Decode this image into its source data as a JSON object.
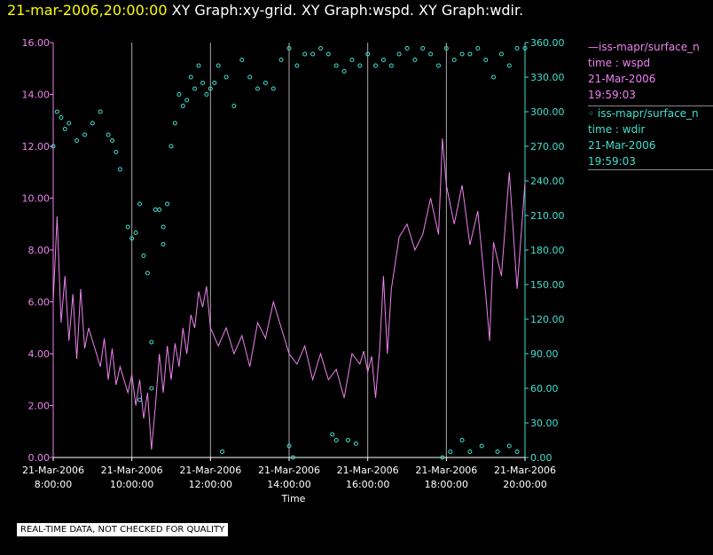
{
  "header": {
    "timestamp": "21-mar-2006,20:00:00",
    "graphs": " XY Graph:xy-grid.  XY Graph:wspd.  XY Graph:wdir."
  },
  "legend": {
    "wspd": {
      "line1": "—iss-mapr/surface_n",
      "line2": "time : wspd",
      "line3": "21-Mar-2006",
      "line4": "19:59:03"
    },
    "wdir": {
      "line1": "◦ iss-mapr/surface_n",
      "line2": "time : wdir",
      "line3": "21-Mar-2006",
      "line4": "19:59:03"
    }
  },
  "disclaimer": "REAL-TIME DATA, NOT CHECKED FOR QUALITY",
  "colors": {
    "wspd": "#ee82ee",
    "wdir": "#40e0d0",
    "grid": "#aaaaaa",
    "axis_left": "#ee82ee",
    "axis_right": "#40e0d0"
  },
  "chart_data": {
    "type": "line",
    "xlabel": "Time",
    "x_ticks": [
      {
        "l1": "21-Mar-2006",
        "l2": "8:00:00",
        "t": 8
      },
      {
        "l1": "21-Mar-2006",
        "l2": "10:00:00",
        "t": 10
      },
      {
        "l1": "21-Mar-2006",
        "l2": "12:00:00",
        "t": 12
      },
      {
        "l1": "21-Mar-2006",
        "l2": "14:00:00",
        "t": 14
      },
      {
        "l1": "21-Mar-2006",
        "l2": "16:00:00",
        "t": 16
      },
      {
        "l1": "21-Mar-2006",
        "l2": "18:00:00",
        "t": 18
      },
      {
        "l1": "21-Mar-2006",
        "l2": "20:00:00",
        "t": 20
      }
    ],
    "xlim": [
      8,
      20
    ],
    "y_left": {
      "lim": [
        0,
        16
      ],
      "ticks": [
        "0.00",
        "2.00",
        "4.00",
        "6.00",
        "8.00",
        "10.00",
        "12.00",
        "14.00",
        "16.00"
      ]
    },
    "y_right": {
      "lim": [
        0,
        360
      ],
      "ticks": [
        "0.00",
        "30.00",
        "60.00",
        "90.00",
        "120.00",
        "150.00",
        "180.00",
        "210.00",
        "240.00",
        "270.00",
        "300.00",
        "330.00",
        "360.00"
      ]
    },
    "grid": "vertical",
    "series": [
      {
        "name": "time : wspd",
        "axis": "left",
        "style": "line",
        "x": [
          8.0,
          8.1,
          8.2,
          8.3,
          8.4,
          8.5,
          8.6,
          8.7,
          8.8,
          8.9,
          9.0,
          9.1,
          9.2,
          9.3,
          9.4,
          9.5,
          9.6,
          9.7,
          9.8,
          9.9,
          10.0,
          10.1,
          10.2,
          10.3,
          10.4,
          10.5,
          10.6,
          10.7,
          10.8,
          10.9,
          11.0,
          11.1,
          11.2,
          11.3,
          11.4,
          11.5,
          11.6,
          11.7,
          11.8,
          11.9,
          12.0,
          12.2,
          12.4,
          12.6,
          12.8,
          13.0,
          13.2,
          13.4,
          13.6,
          13.8,
          14.0,
          14.2,
          14.4,
          14.6,
          14.8,
          15.0,
          15.2,
          15.4,
          15.6,
          15.8,
          15.9,
          16.0,
          16.1,
          16.2,
          16.3,
          16.4,
          16.5,
          16.6,
          16.8,
          17.0,
          17.2,
          17.4,
          17.6,
          17.8,
          17.9,
          18.0,
          18.2,
          18.4,
          18.6,
          18.8,
          19.0,
          19.1,
          19.2,
          19.4,
          19.6,
          19.8,
          20.0
        ],
        "y": [
          6.0,
          9.3,
          5.2,
          7.0,
          4.5,
          6.3,
          3.8,
          6.5,
          4.2,
          5.0,
          4.5,
          4.0,
          3.5,
          4.6,
          3.0,
          4.2,
          2.8,
          3.5,
          3.0,
          2.5,
          3.2,
          2.0,
          3.0,
          1.5,
          2.5,
          0.3,
          2.0,
          4.0,
          2.5,
          4.3,
          3.0,
          4.4,
          3.5,
          5.0,
          4.0,
          5.5,
          5.0,
          6.4,
          5.8,
          6.6,
          5.0,
          4.3,
          5.0,
          4.0,
          4.7,
          3.5,
          5.2,
          4.6,
          6.0,
          5.0,
          4.0,
          3.6,
          4.3,
          3.0,
          4.0,
          3.0,
          3.4,
          2.3,
          4.0,
          3.6,
          4.1,
          3.3,
          3.9,
          2.3,
          4.1,
          7.0,
          4.0,
          6.5,
          8.5,
          9.0,
          8.0,
          8.6,
          10.0,
          8.6,
          12.3,
          10.5,
          9.0,
          10.5,
          8.2,
          9.5,
          6.3,
          4.5,
          8.3,
          7.0,
          11.0,
          6.5,
          10.6
        ]
      },
      {
        "name": "time : wdir",
        "axis": "right",
        "style": "scatter",
        "x": [
          8.0,
          8.1,
          8.2,
          8.3,
          8.4,
          8.6,
          8.8,
          9.0,
          9.2,
          9.4,
          9.5,
          9.6,
          9.7,
          9.9,
          10.0,
          10.1,
          10.2,
          10.3,
          10.4,
          10.5,
          10.6,
          10.7,
          10.8,
          10.9,
          11.0,
          11.1,
          11.2,
          11.3,
          11.4,
          11.5,
          11.6,
          11.7,
          11.8,
          11.9,
          12.0,
          12.1,
          12.2,
          12.4,
          12.6,
          12.8,
          13.0,
          13.2,
          13.4,
          13.6,
          13.8,
          14.0,
          14.2,
          14.4,
          14.6,
          14.8,
          15.0,
          15.2,
          15.4,
          15.6,
          15.8,
          16.0,
          16.2,
          16.4,
          16.6,
          16.8,
          17.0,
          17.2,
          17.4,
          17.6,
          17.8,
          18.0,
          18.2,
          18.4,
          18.6,
          18.8,
          19.0,
          19.2,
          19.4,
          19.6,
          19.8,
          20.0,
          10.2,
          10.5,
          10.8,
          12.3,
          14.0,
          14.1,
          15.1,
          15.2,
          15.5,
          15.7,
          17.9,
          18.1,
          18.4,
          18.6,
          18.9,
          19.3,
          19.6,
          19.8
        ],
        "y": [
          270,
          300,
          295,
          285,
          290,
          275,
          280,
          290,
          300,
          280,
          275,
          265,
          250,
          200,
          190,
          195,
          220,
          175,
          160,
          60,
          215,
          215,
          200,
          220,
          270,
          290,
          315,
          305,
          310,
          330,
          320,
          340,
          325,
          315,
          320,
          325,
          340,
          330,
          305,
          345,
          330,
          320,
          325,
          320,
          345,
          355,
          340,
          350,
          350,
          355,
          350,
          340,
          335,
          345,
          340,
          350,
          340,
          345,
          340,
          350,
          355,
          345,
          355,
          350,
          340,
          355,
          345,
          350,
          350,
          355,
          345,
          330,
          350,
          340,
          355,
          355,
          50,
          100,
          185,
          5,
          10,
          0,
          20,
          15,
          15,
          12,
          0,
          5,
          15,
          5,
          10,
          5,
          10,
          5
        ]
      }
    ]
  }
}
